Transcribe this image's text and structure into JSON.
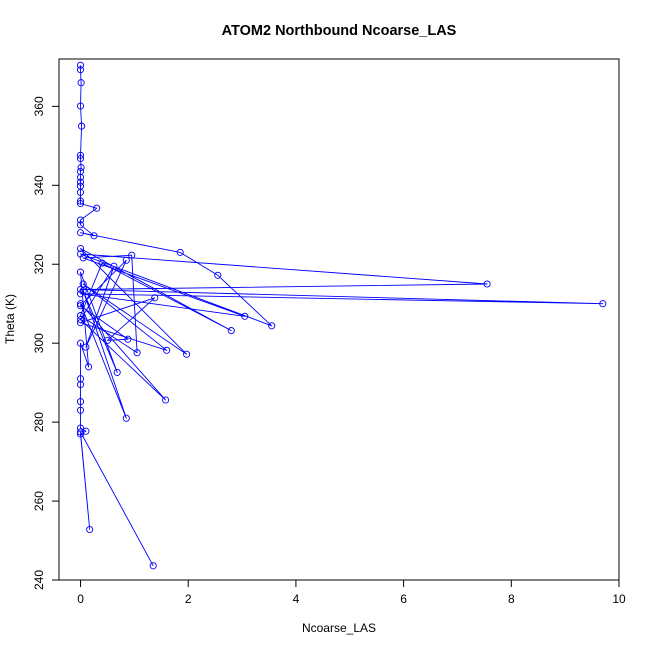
{
  "chart_data": {
    "type": "line",
    "title": "ATOM2 Northbound Ncoarse_LAS",
    "xlabel": "Ncoarse_LAS",
    "ylabel": "Theta (K)",
    "xlim": [
      -0.4,
      10.0
    ],
    "ylim": [
      240,
      372
    ],
    "xticks": [
      0,
      2,
      4,
      6,
      8,
      10
    ],
    "yticks": [
      240,
      260,
      280,
      300,
      320,
      340,
      360
    ],
    "grid": false,
    "line_color": "#0000ff",
    "marker": "open-circle",
    "series": [
      {
        "points": [
          [
            0.0,
            370.4
          ],
          [
            0.0,
            369.3
          ],
          [
            0.01,
            366.0
          ],
          [
            0.0,
            360.1
          ],
          [
            0.02,
            355.0
          ],
          [
            0.0,
            347.6
          ],
          [
            0.0,
            346.8
          ],
          [
            0.01,
            344.5
          ],
          [
            0.0,
            343.5
          ],
          [
            0.0,
            342.0
          ],
          [
            0.0,
            340.8
          ],
          [
            0.0,
            339.8
          ],
          [
            0.0,
            338.2
          ],
          [
            0.0,
            336.0
          ],
          [
            0.0,
            335.4
          ],
          [
            0.3,
            334.2
          ],
          [
            0.0,
            331.2
          ],
          [
            0.0,
            330.0
          ],
          [
            0.25,
            327.2
          ],
          [
            0.0,
            328.0
          ],
          [
            1.85,
            323.0
          ],
          [
            2.55,
            317.2
          ],
          [
            3.55,
            304.4
          ],
          [
            0.0,
            322.6
          ],
          [
            7.55,
            315.0
          ],
          [
            0.0,
            313.6
          ],
          [
            9.7,
            310.0
          ],
          [
            0.0,
            312.5
          ],
          [
            3.05,
            306.8
          ],
          [
            0.05,
            321.6
          ],
          [
            0.95,
            322.3
          ],
          [
            1.05,
            297.6
          ],
          [
            0.0,
            307.0
          ],
          [
            0.4,
            320.3
          ],
          [
            2.8,
            303.2
          ],
          [
            0.0,
            324.0
          ],
          [
            1.97,
            297.2
          ],
          [
            0.05,
            315.0
          ],
          [
            1.6,
            298.2
          ],
          [
            0.0,
            305.2
          ],
          [
            1.38,
            311.5
          ],
          [
            0.5,
            300.7
          ],
          [
            0.88,
            301.0
          ],
          [
            0.0,
            309.5
          ],
          [
            0.85,
            321.0
          ],
          [
            0.1,
            299.0
          ],
          [
            0.62,
            319.5
          ],
          [
            0.0,
            306.0
          ],
          [
            1.58,
            285.6
          ],
          [
            0.0,
            310.0
          ],
          [
            0.85,
            281.0
          ],
          [
            0.05,
            313.3
          ],
          [
            0.68,
            292.6
          ],
          [
            0.0,
            318.0
          ],
          [
            0.15,
            294.0
          ],
          [
            0.0,
            300.0
          ],
          [
            0.0,
            291.0
          ],
          [
            0.0,
            289.5
          ],
          [
            0.0,
            285.2
          ],
          [
            0.0,
            283.0
          ],
          [
            0.0,
            278.5
          ],
          [
            0.1,
            277.7
          ],
          [
            0.0,
            277.0
          ],
          [
            0.17,
            252.8
          ],
          [
            0.0,
            277.5
          ],
          [
            1.35,
            243.6
          ]
        ]
      }
    ]
  }
}
